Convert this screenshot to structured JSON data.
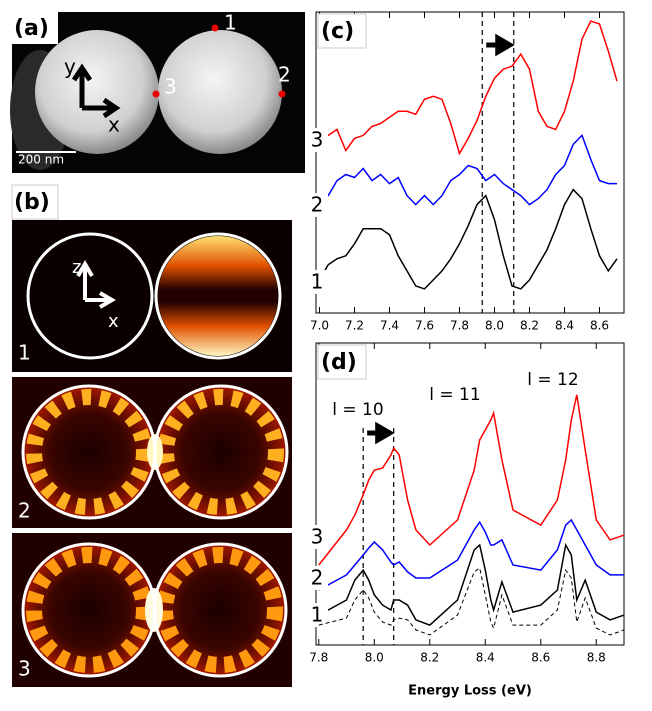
{
  "panel_a": {
    "label": "(a)",
    "points": [
      "1",
      "2",
      "3"
    ],
    "axes": [
      "y",
      "x"
    ],
    "scale_bar": "200 nm"
  },
  "panel_b": {
    "label": "(b)",
    "axes": [
      "z",
      "x"
    ],
    "modes": [
      "1",
      "2",
      "3"
    ]
  },
  "chart_data": [
    {
      "type": "line",
      "label": "(c)",
      "x": [
        7.0,
        7.05,
        7.1,
        7.15,
        7.2,
        7.25,
        7.3,
        7.35,
        7.4,
        7.45,
        7.5,
        7.55,
        7.6,
        7.65,
        7.7,
        7.75,
        7.8,
        7.85,
        7.9,
        7.95,
        8.0,
        8.05,
        8.1,
        8.15,
        8.2,
        8.25,
        8.3,
        8.35,
        8.4,
        8.45,
        8.5,
        8.55,
        8.6,
        8.65,
        8.7
      ],
      "xlim": [
        6.98,
        8.74
      ],
      "ylim": [
        0,
        100
      ],
      "xticks": [
        {
          "value": 7,
          "label": "7.0"
        },
        7.2,
        7.4,
        7.6,
        7.8,
        {
          "value": 8,
          "label": "8.0"
        },
        8.2,
        8.4,
        8.6
      ],
      "vlines": [
        7.93,
        8.11
      ],
      "series": [
        {
          "name": "3",
          "color": "#ff0000",
          "values": [
            60,
            59,
            61,
            54,
            58,
            59,
            62,
            63,
            65,
            67,
            67,
            66,
            71,
            72,
            71,
            63,
            53,
            58,
            64,
            72,
            78,
            81,
            82,
            86,
            81,
            67,
            62,
            61,
            67,
            77,
            91,
            97,
            96,
            87,
            77
          ]
        },
        {
          "name": "2",
          "color": "#0000ff",
          "values": [
            38,
            39,
            44,
            46,
            45,
            48,
            44,
            46,
            43,
            45,
            39,
            36,
            39,
            36,
            39,
            44,
            46,
            49,
            48,
            44,
            46,
            43,
            41,
            39,
            36,
            38,
            41,
            46,
            49,
            56,
            59,
            51,
            44,
            43,
            43
          ]
        },
        {
          "name": "1",
          "color": "#000000",
          "values": [
            11,
            16,
            18,
            19,
            23,
            28,
            28,
            28,
            26,
            19,
            14,
            9,
            8,
            11,
            14,
            18,
            23,
            29,
            36,
            39,
            31,
            19,
            9,
            8,
            11,
            16,
            21,
            28,
            36,
            41,
            38,
            28,
            19,
            14,
            18
          ]
        }
      ]
    },
    {
      "type": "line",
      "label": "(d)",
      "xlabel": "Energy Loss (eV)",
      "annotations": [
        "l = 10",
        "l = 11",
        "l = 12"
      ],
      "x": [
        7.8,
        7.9,
        7.93,
        7.96,
        7.98,
        8.0,
        8.03,
        8.06,
        8.07,
        8.09,
        8.12,
        8.15,
        8.2,
        8.3,
        8.36,
        8.38,
        8.4,
        8.42,
        8.43,
        8.46,
        8.5,
        8.6,
        8.66,
        8.69,
        8.71,
        8.73,
        8.76,
        8.8,
        8.85,
        8.9
      ],
      "xlim": [
        7.79,
        8.9
      ],
      "ylim": [
        0,
        100
      ],
      "xticks": [
        7.8,
        {
          "value": 8,
          "label": "8.0"
        },
        8.2,
        8.4,
        8.6,
        8.8
      ],
      "vlines": [
        7.96,
        8.07
      ],
      "series": [
        {
          "name": "3",
          "color": "#ff0000",
          "values": [
            26.5,
            38.1,
            43,
            49.7,
            54.6,
            57.9,
            58.6,
            62.9,
            65.2,
            62.9,
            48,
            38.1,
            33.1,
            41.4,
            57.9,
            67.9,
            71.2,
            74.5,
            76.8,
            61.3,
            44.7,
            39.7,
            48,
            61.3,
            74.5,
            82.8,
            64.6,
            41.4,
            34.8,
            36.4
          ]
        },
        {
          "name": "2",
          "color": "#0000ff",
          "values": [
            18.2,
            23.2,
            26.5,
            29.8,
            32.1,
            34.1,
            31.5,
            27.5,
            26.5,
            27.5,
            24.2,
            22.2,
            22.2,
            28.1,
            38.1,
            40.7,
            37.4,
            33.1,
            33.1,
            34.8,
            26.5,
            24.8,
            31.5,
            39.7,
            41.4,
            38.1,
            33.1,
            26.5,
            23.2,
            23.2
          ]
        },
        {
          "name": "1",
          "color": "#000000",
          "values": [
            9.9,
            14.9,
            21.5,
            24.8,
            21.5,
            16.6,
            13.2,
            11.6,
            14.9,
            14.9,
            13.2,
            8.3,
            6.6,
            14.9,
            31.5,
            33.1,
            24.8,
            14.9,
            11.6,
            20.9,
            10.9,
            13.2,
            18.2,
            33.1,
            29.8,
            14.9,
            21.5,
            10.9,
            8.3,
            9.9
          ]
        },
        {
          "color": "#000000",
          "dash": true,
          "values": [
            6.6,
            8.9,
            14.9,
            18.2,
            15.6,
            10.9,
            7.6,
            6.6,
            8.3,
            8.9,
            8.3,
            5,
            3.3,
            9.9,
            24.2,
            25.5,
            16.6,
            7.6,
            5.6,
            16.6,
            6.6,
            6.6,
            11.6,
            24.8,
            22.2,
            7.6,
            15.6,
            5.6,
            3.3,
            5
          ]
        }
      ]
    }
  ]
}
